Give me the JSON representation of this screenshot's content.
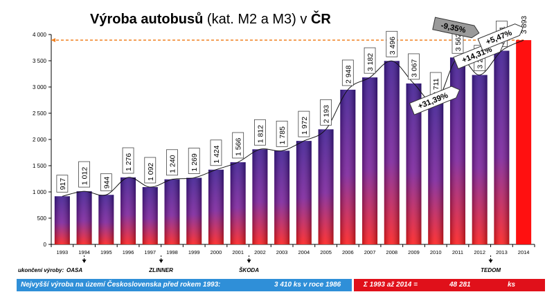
{
  "title_bold_1": "Výroba autobusů",
  "title_normal": " (kat. M2 a M3) v ",
  "title_bold_2": "ČR",
  "chart_data": {
    "type": "bar",
    "categories": [
      "1993",
      "1994",
      "1995",
      "1996",
      "1997",
      "1998",
      "1999",
      "2000",
      "2001",
      "2002",
      "2003",
      "2004",
      "2005",
      "2006",
      "2007",
      "2008",
      "2009",
      "2010",
      "2011",
      "2012",
      "2013",
      "2014"
    ],
    "values": [
      917,
      1012,
      944,
      1276,
      1092,
      1240,
      1269,
      1424,
      1566,
      1812,
      1785,
      1972,
      2193,
      2948,
      3182,
      3496,
      3067,
      2711,
      3562,
      3229,
      3691,
      3893
    ],
    "value_labels": [
      "917",
      "1 012",
      "944",
      "1 276",
      "1 092",
      "1 240",
      "1 269",
      "1 424",
      "1 566",
      "1 812",
      "1 785",
      "1 972",
      "2 193",
      "2 948",
      "3 182",
      "3 496",
      "3 067",
      "2 711",
      "3 562",
      "3 229",
      "3 691",
      "3 893"
    ],
    "highlight_index": 21,
    "reference_value": 3893,
    "ylim": [
      0,
      4000
    ],
    "yticks": [
      "0",
      "500",
      "1 000",
      "1 500",
      "2 000",
      "2 500",
      "3 000",
      "3 500",
      "4 000"
    ],
    "trend_line": true,
    "grid": false,
    "colors": {
      "bar_top": "#3a1890",
      "bar_bottom": "#ff1a1a",
      "highlight_bar": "#ff1010",
      "reference_line": "#f08020",
      "last_label": "#c01010"
    },
    "callouts": [
      {
        "text": "+31,39%",
        "from_index": 17,
        "to_index": 18,
        "style": "up"
      },
      {
        "text": "-9,35%",
        "from_index": 18,
        "to_index": 19,
        "style": "down"
      },
      {
        "text": "+14,31%",
        "from_index": 19,
        "to_index": 20,
        "style": "up"
      },
      {
        "text": "+5,47%",
        "from_index": 20,
        "to_index": 21,
        "style": "up"
      }
    ],
    "annotations": {
      "prefix": "ukončení výroby:",
      "items": [
        {
          "label": "OASA",
          "index": 1
        },
        {
          "label": "ZLINNER",
          "index": 4
        },
        {
          "label": "ŠKODA",
          "index": 8
        },
        {
          "label": "TEDOM",
          "index": 19
        }
      ]
    }
  },
  "footer": {
    "left_text": "Nejvyšší výroba na území Československa před rokem 1993:",
    "left_value": "3 410  ks v roce 1986",
    "right_text": "Σ 1993 až 2014 =",
    "right_value": "48 281",
    "right_unit": "ks"
  }
}
